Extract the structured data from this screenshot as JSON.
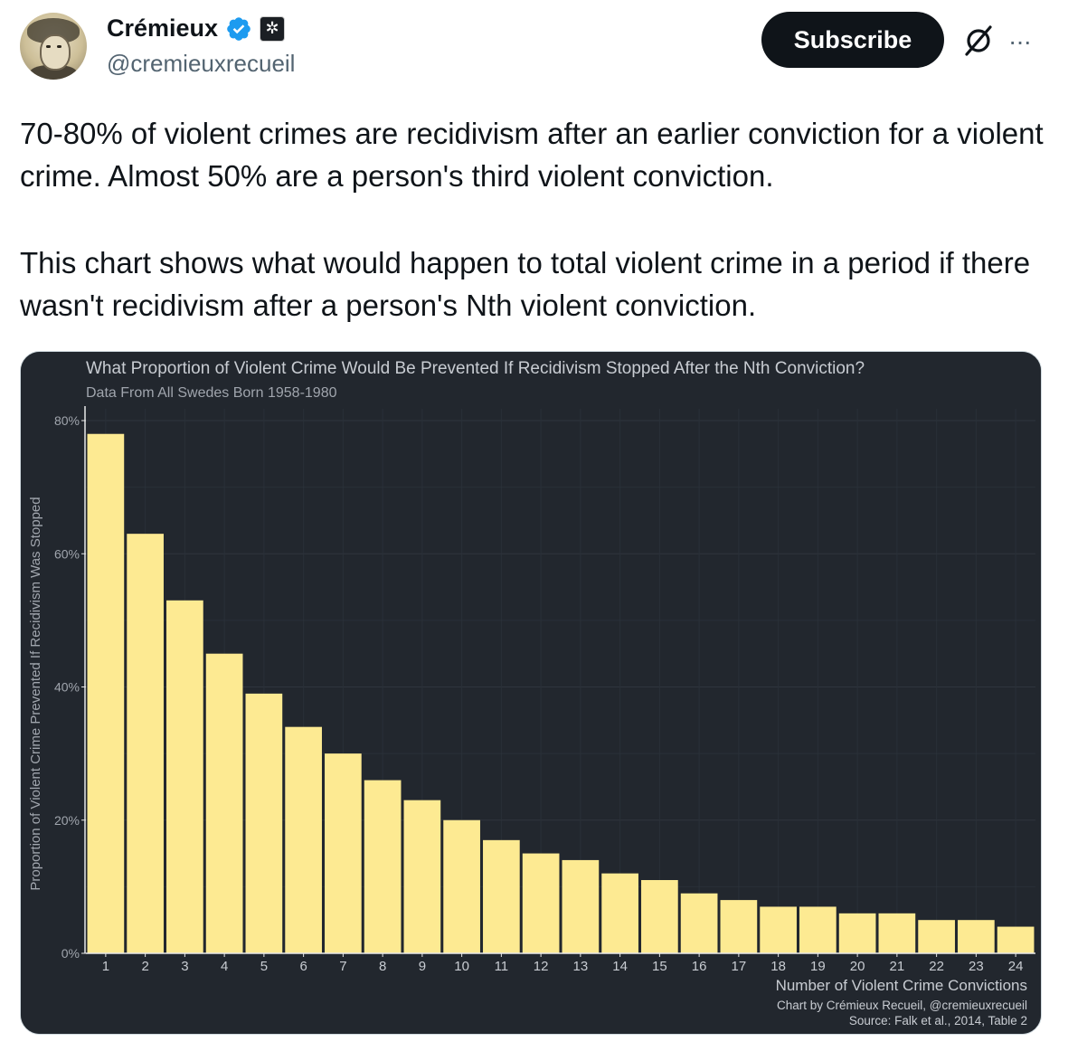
{
  "author": {
    "name": "Crémieux",
    "handle": "@cremieuxrecueil",
    "verified_icon": "verified-badge-icon",
    "affiliate_icon": "affiliate-badge-icon"
  },
  "actions": {
    "subscribe_label": "Subscribe",
    "grok_icon": "grok-icon",
    "more_label": "···"
  },
  "tweet": {
    "paragraph1": "70-80% of violent crimes are recidivism after an earlier conviction for a violent crime. Almost 50% are a person's third violent conviction.",
    "paragraph2": "This chart shows what would happen to total violent crime in a period if there wasn't recidivism after a person's Nth violent conviction."
  },
  "colors": {
    "chart_background": "#22272e",
    "bar_fill": "#fdea92",
    "text": "#c8ccd2"
  },
  "chart_data": {
    "type": "bar",
    "title": "What Proportion of Violent Crime Would Be Prevented If Recidivism Stopped After the Nth Conviction?",
    "subtitle": "Data From All Swedes Born 1958-1980",
    "xlabel": "Number of Violent Crime Convictions",
    "ylabel": "Proportion of Violent Crime Prevented If Recidivism Was Stopped",
    "caption_line1": "Chart by Crémieux Recueil, @cremieuxrecueil",
    "caption_line2": "Source: Falk et al., 2014, Table 2",
    "categories": [
      "1",
      "2",
      "3",
      "4",
      "5",
      "6",
      "7",
      "8",
      "9",
      "10",
      "11",
      "12",
      "13",
      "14",
      "15",
      "16",
      "17",
      "18",
      "19",
      "20",
      "21",
      "22",
      "23",
      "24"
    ],
    "values": [
      78,
      63,
      53,
      45,
      39,
      34,
      30,
      26,
      23,
      20,
      17,
      15,
      14,
      12,
      11,
      9,
      8,
      7,
      7,
      6,
      6,
      5,
      5,
      4
    ],
    "ylim": [
      0,
      80
    ],
    "yticks": [
      0,
      20,
      40,
      60,
      80
    ],
    "ytick_labels": [
      "0%",
      "20%",
      "40%",
      "60%",
      "80%"
    ],
    "grid": true
  }
}
